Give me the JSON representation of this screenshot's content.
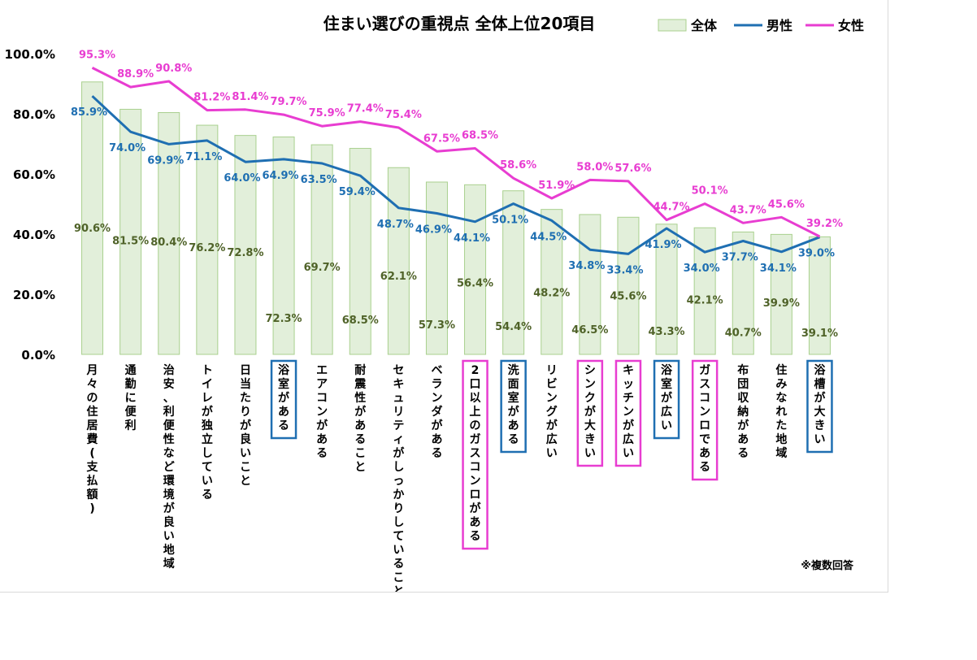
{
  "chart_data": {
    "type": "bar",
    "title": "住まい選びの重視点 全体上位20項目",
    "note": "※複数回答",
    "ylim": [
      0,
      100
    ],
    "yticks": [
      "0.0%",
      "20.0%",
      "40.0%",
      "60.0%",
      "80.0%",
      "100.0%"
    ],
    "legend_position": "top-right",
    "categories": [
      "月々の住居費(支払額)",
      "通勤に便利",
      "治安、利便性など環境が良い地域",
      "トイレが独立している",
      "日当たりが良いこと",
      "浴室がある",
      "エアコンがある",
      "耐震性があること",
      "セキュリティがしっかりしていること",
      "ベランダがある",
      "2口以上のガスコンロがある",
      "洗面室がある",
      "リビングが広い",
      "シンクが大きい",
      "キッチンが広い",
      "浴室が広い",
      "ガスコンロである",
      "布団収納がある",
      "住みなれた地域",
      "浴槽が大きい"
    ],
    "category_highlight": [
      "",
      "",
      "",
      "",
      "",
      "blue",
      "",
      "",
      "",
      "",
      "pink",
      "blue",
      "",
      "pink",
      "pink",
      "blue",
      "pink",
      "",
      "",
      "blue"
    ],
    "series": [
      {
        "name": "全体",
        "type": "bar",
        "values": [
          90.6,
          81.5,
          80.4,
          76.2,
          72.8,
          72.3,
          69.7,
          68.5,
          62.1,
          57.3,
          56.4,
          54.4,
          48.2,
          46.5,
          45.6,
          43.3,
          42.1,
          40.7,
          39.9,
          39.1
        ],
        "labels": [
          "90.6%",
          "81.5%",
          "80.4%",
          "76.2%",
          "72.8%",
          "72.3%",
          "69.7%",
          "68.5%",
          "62.1%",
          "57.3%",
          "56.4%",
          "54.4%",
          "48.2%",
          "46.5%",
          "45.6%",
          "43.3%",
          "42.1%",
          "40.7%",
          "39.9%",
          "39.1%"
        ]
      },
      {
        "name": "男性",
        "type": "line",
        "values": [
          85.9,
          74.0,
          69.9,
          71.1,
          64.0,
          64.9,
          63.5,
          59.4,
          48.7,
          46.9,
          44.1,
          50.1,
          44.5,
          34.8,
          33.4,
          41.9,
          34.0,
          37.7,
          34.1,
          39.0
        ],
        "labels": [
          "85.9%",
          "74.0%",
          "69.9%",
          "71.1%",
          "64.0%",
          "64.9%",
          "63.5%",
          "59.4%",
          "48.7%",
          "46.9%",
          "44.1%",
          "50.1%",
          "44.5%",
          "34.8%",
          "33.4%",
          "41.9%",
          "34.0%",
          "37.7%",
          "34.1%",
          "39.0%"
        ]
      },
      {
        "name": "女性",
        "type": "line",
        "values": [
          95.3,
          88.9,
          90.8,
          81.2,
          81.4,
          79.7,
          75.9,
          77.4,
          75.4,
          67.5,
          68.5,
          58.6,
          51.9,
          58.0,
          57.6,
          44.7,
          50.1,
          43.7,
          45.6,
          39.2
        ],
        "labels": [
          "95.3%",
          "88.9%",
          "90.8%",
          "81.2%",
          "81.4%",
          "79.7%",
          "75.9%",
          "77.4%",
          "75.4%",
          "67.5%",
          "68.5%",
          "58.6%",
          "51.9%",
          "58.0%",
          "57.6%",
          "44.7%",
          "50.1%",
          "43.7%",
          "45.6%",
          "39.2%"
        ]
      }
    ],
    "colors": {
      "bar_fill": "#e2efda",
      "bar_stroke": "#a9d08e",
      "bar_label": "#4f6228",
      "male": "#1f6fb2",
      "female": "#e83dd1",
      "highlight_blue": "#1f6fb2",
      "highlight_pink": "#e83dd1",
      "axis_text": "#000000"
    }
  }
}
